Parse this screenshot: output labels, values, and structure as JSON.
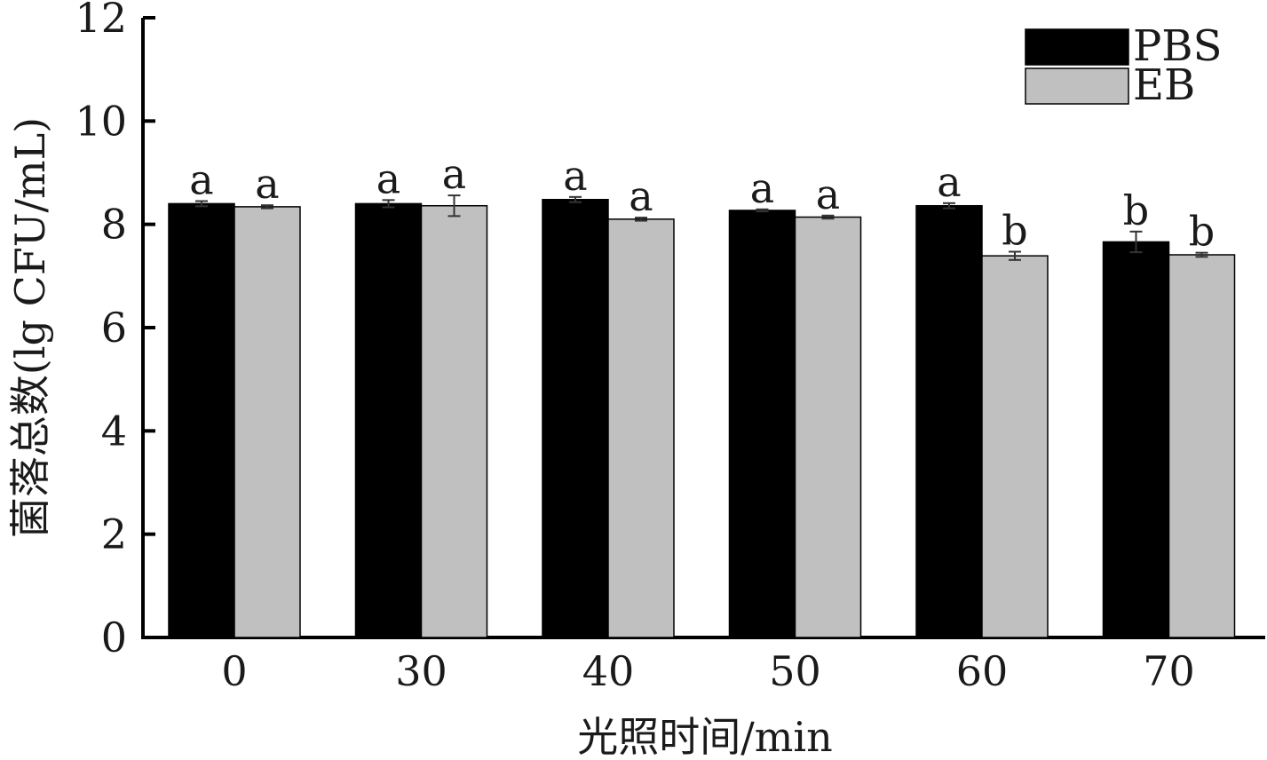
{
  "chart_data": {
    "type": "bar",
    "categories": [
      "0",
      "30",
      "40",
      "50",
      "60",
      "70"
    ],
    "xlabel": "光照时间/min",
    "ylabel": "菌落总数(lg CFU/mL)",
    "ylim": [
      0,
      12
    ],
    "yticks": [
      "0",
      "2",
      "4",
      "6",
      "8",
      "10",
      "12"
    ],
    "grid": false,
    "legend_position": "top-right",
    "series": [
      {
        "name": "PBS",
        "color": "#000000",
        "values": [
          8.4,
          8.4,
          8.48,
          8.27,
          8.36,
          7.66
        ],
        "errors": [
          0.05,
          0.07,
          0.05,
          0.02,
          0.05,
          0.2
        ],
        "significance": [
          "a",
          "a",
          "a",
          "a",
          "a",
          "b"
        ]
      },
      {
        "name": "EB",
        "color": "#c0c0c0",
        "values": [
          8.34,
          8.36,
          8.1,
          8.14,
          7.39,
          7.41
        ],
        "errors": [
          0.03,
          0.2,
          0.03,
          0.03,
          0.08,
          0.04
        ],
        "significance": [
          "a",
          "a",
          "a",
          "a",
          "b",
          "b"
        ]
      }
    ]
  }
}
